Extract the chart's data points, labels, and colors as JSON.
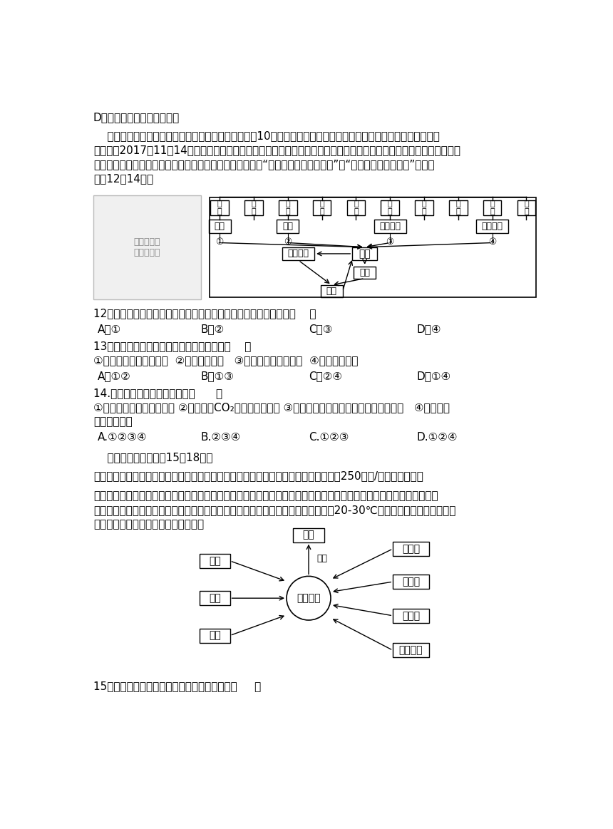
{
  "bg_color": "#ffffff",
  "text_color": "#000000",
  "lm": 30,
  "fs": 11,
  "lh": 26,
  "top_row_labels": [
    "烟\n灰",
    "灰\n炭",
    "养\n肆",
    "畜\n产",
    "造\n纸",
    "纺\n织",
    "发\n电",
    "沼\n气",
    "沼\n渣",
    "沼\n液"
  ],
  "cat_labels": [
    "燃料",
    "饰料",
    "工业原料",
    "沼气原料"
  ],
  "nums": [
    "①",
    "②",
    "③",
    "④"
  ],
  "jigan_label": "秸秵",
  "tianfen_label": "田间焚烧",
  "huantian_label": "还田",
  "nongtian_label": "农田",
  "q12_text": "12．既能提供生活能源，又有利于提高土壤肆力的秸秵利用方式是（    ）",
  "q12_opts": [
    "A．①",
    "B．②",
    "C．③",
    "D．④"
  ],
  "q13_text": "13．在农田里大面积焚烧秸秵的影响主要是（    ）",
  "q13_sub": "①阻碍农村能源结构调整  ②造成资源浪费   ③增加土壤有机质含量  ④引起大气污染",
  "q13_opts": [
    "A．①②",
    "B．①③",
    "C．②④",
    "D．①④"
  ],
  "q14_text": "14.农田大量焚烧秸秵的危害有（      ）",
  "q14_sub1": "①产生大量烟尘，影响交通 ②产生大量CO₂，加剧温室效应 ③产生大量可吸入颠粒物，危害人体健康   ④不利于土",
  "q14_sub2": "壤肆力的恢复",
  "q14_opts": [
    "A.①②③④",
    "B.②③④",
    "C.①②③",
    "D.①②④"
  ],
  "read_intro": "    阅读下列材料，回等15～18题。",
  "mat1": "材料一：咏潮是指海水通过河流或其他渠道倒流到内陆水域后，水中的盐分达到或超过250毫克/升的自然灾害。",
  "mat2_1": "材料二：赤潮是水体中某些微小的浮游植物、原生动物或细菌，在一定的环境条件下突发性地增殖和聚集，引起一定范围",
  "mat2_2": "内一段时间中水体变色的现象。赤潮是海洋中由海水富营养化造成的常见污染类型。20-30℃是赤潮发生最适宜的温度范",
  "mat2_3": "图，赤潮发生的环境条件如下图所示。",
  "q15_text": "15．下列河流中河口最易有咏潮现象发生的是（     ）",
  "mind_center": "赤潮生物",
  "mind_top": "赤潮",
  "mind_left": [
    "风向",
    "温度",
    "光照"
  ],
  "mind_right": [
    "有机物",
    "营养盐",
    "维生素",
    "微量元素"
  ],
  "mind_arrow_label": "死亡"
}
